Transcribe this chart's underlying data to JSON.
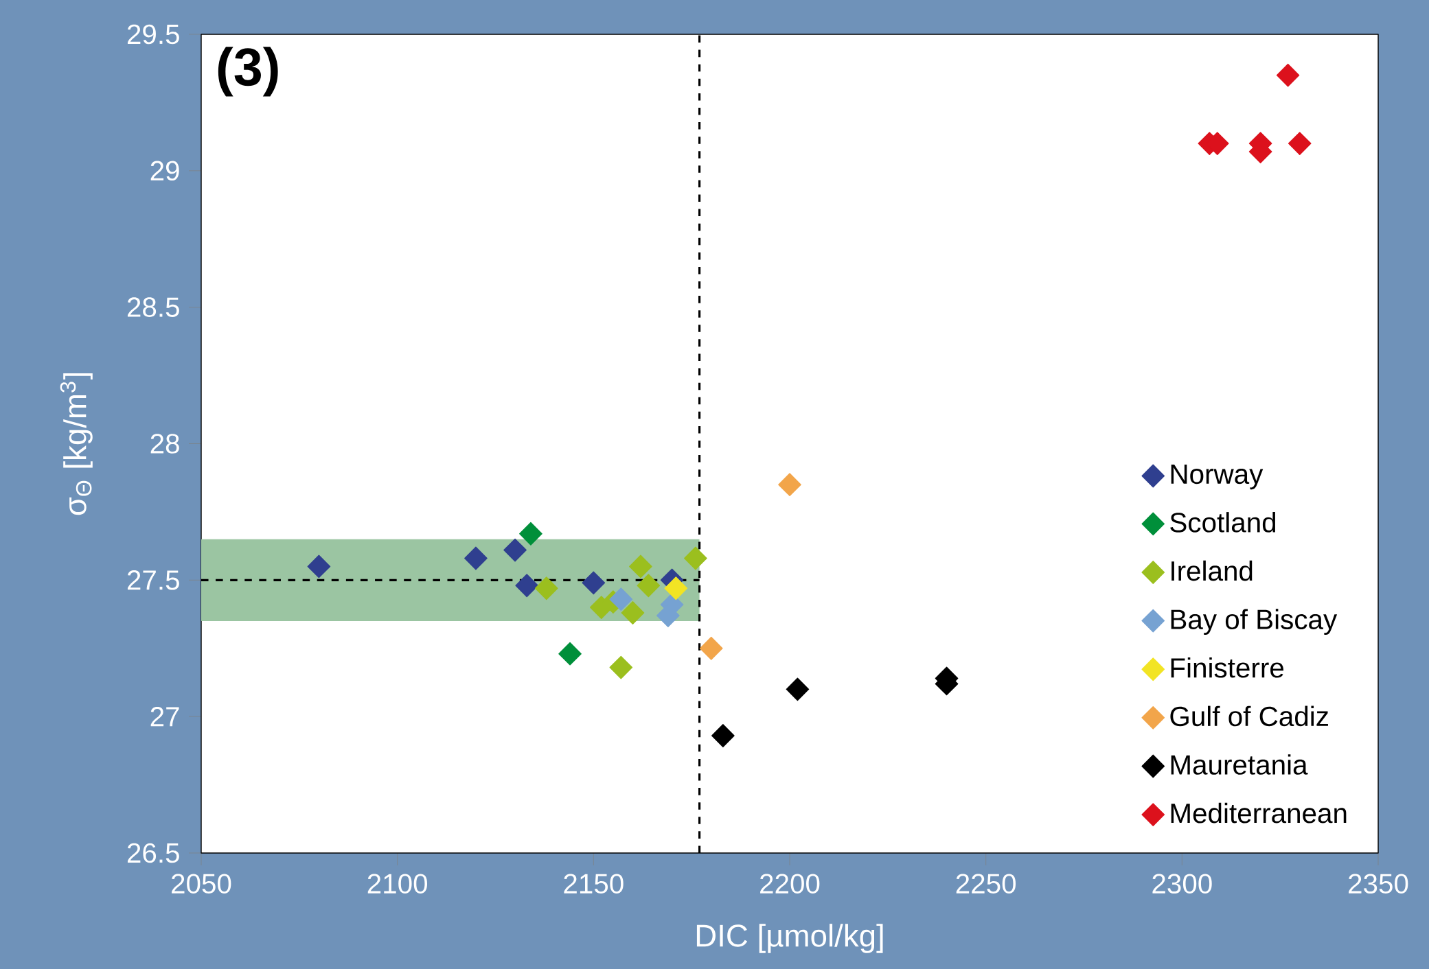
{
  "chart_data": {
    "type": "scatter",
    "xlabel": "DIC [µmol/kg]",
    "ylabel": "σ$_{Θ}$ [kg/m$^{3}$]",
    "annotations": [
      "(3)"
    ],
    "xlim": [
      2050,
      2350
    ],
    "xticks": [
      2050,
      2100,
      2150,
      2200,
      2250,
      2300,
      2350
    ],
    "ylim": [
      26.5,
      29.5
    ],
    "yticks": [
      26.5,
      27,
      27.5,
      28,
      28.5,
      29,
      29.5
    ],
    "marker": "diamond",
    "legend": "bottom right",
    "grid": false,
    "ref_lines": [
      {
        "axis": "y",
        "value": 27.5,
        "line_style": "dashed",
        "color": "#000000"
      },
      {
        "axis": "x",
        "value": 2177,
        "line_style": "dashed",
        "color": "#000000"
      }
    ],
    "bands": [
      {
        "axis": "y",
        "from": 27.35,
        "to": 27.65,
        "color": "#9bc5a2"
      }
    ],
    "series": [
      {
        "name": "Norway",
        "color": "#2f3f8f",
        "x": [
          2080,
          2120,
          2130,
          2133,
          2150,
          2170
        ],
        "values": [
          27.55,
          27.58,
          27.61,
          27.48,
          27.49,
          27.5
        ]
      },
      {
        "name": "Scotland",
        "color": "#008f3a",
        "x": [
          2134,
          2144
        ],
        "values": [
          27.67,
          27.23
        ]
      },
      {
        "name": "Ireland",
        "color": "#9bbf1e",
        "x": [
          2138,
          2152,
          2155,
          2160,
          2162,
          2164,
          2176,
          2157
        ],
        "values": [
          27.47,
          27.4,
          27.42,
          27.38,
          27.55,
          27.48,
          27.58,
          27.18
        ]
      },
      {
        "name": "Bay of Biscay",
        "color": "#76a2d2",
        "x": [
          2157,
          2170,
          2169
        ],
        "values": [
          27.43,
          27.41,
          27.37
        ]
      },
      {
        "name": "Finisterre",
        "color": "#f2e424",
        "x": [
          2171
        ],
        "values": [
          27.47
        ]
      },
      {
        "name": "Gulf of Cadiz",
        "color": "#f2a54a",
        "x": [
          2180,
          2200
        ],
        "values": [
          27.25,
          27.85
        ]
      },
      {
        "name": "Mauretania",
        "color": "#000000",
        "x": [
          2183,
          2202,
          2240,
          2240
        ],
        "values": [
          26.93,
          27.1,
          27.14,
          27.12
        ]
      },
      {
        "name": "Mediterranean",
        "color": "#dc111c",
        "x": [
          2307,
          2309,
          2320,
          2320,
          2330,
          2327
        ],
        "values": [
          29.1,
          29.1,
          29.1,
          29.07,
          29.1,
          29.35
        ]
      }
    ]
  }
}
